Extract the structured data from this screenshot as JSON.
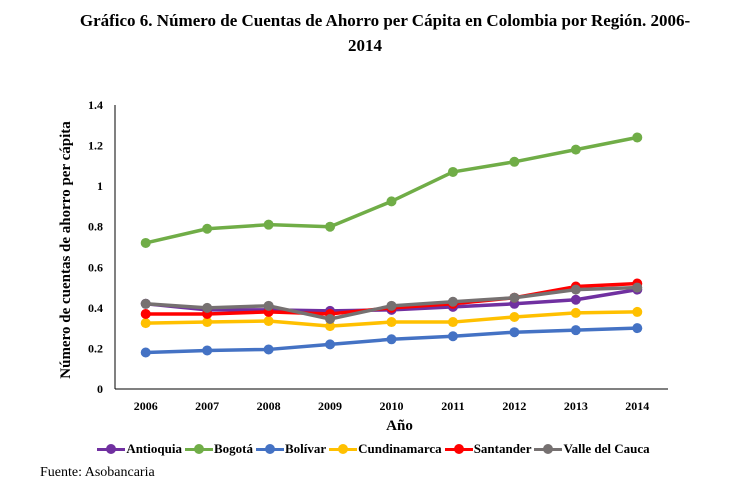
{
  "title_line1": "Gráfico 6. Número de Cuentas de Ahorro per Cápita en Colombia por Región. 2006-",
  "title_line2": "2014",
  "source": "Fuente: Asobancaria",
  "chart_data": {
    "type": "line",
    "title": "Gráfico 6. Número de Cuentas de Ahorro per Cápita en Colombia por Región. 2006-2014",
    "xlabel": "Año",
    "ylabel": "Número de cuentas de ahorro per cápita",
    "ylim": [
      0,
      1.4
    ],
    "yticks": [
      "0",
      "0.2",
      "0.4",
      "0.6",
      "0.8",
      "1",
      "1.2",
      "1.4"
    ],
    "ytick_values": [
      0,
      0.2,
      0.4,
      0.6,
      0.8,
      1,
      1.2,
      1.4
    ],
    "categories": [
      "2006",
      "2007",
      "2008",
      "2009",
      "2010",
      "2011",
      "2012",
      "2013",
      "2014"
    ],
    "grid": false,
    "legend_position": "bottom",
    "series": [
      {
        "name": "Antioquia",
        "color": "#7030A0",
        "values": [
          0.42,
          0.39,
          0.39,
          0.385,
          0.39,
          0.405,
          0.42,
          0.44,
          0.49
        ]
      },
      {
        "name": "Bogotá",
        "color": "#70AD47",
        "values": [
          0.72,
          0.79,
          0.81,
          0.8,
          0.925,
          1.07,
          1.12,
          1.18,
          1.24
        ]
      },
      {
        "name": "Bolívar",
        "color": "#4472C4",
        "values": [
          0.18,
          0.19,
          0.195,
          0.22,
          0.245,
          0.26,
          0.28,
          0.29,
          0.3
        ]
      },
      {
        "name": "Cundinamarca",
        "color": "#FFC000",
        "values": [
          0.325,
          0.33,
          0.335,
          0.31,
          0.33,
          0.33,
          0.355,
          0.375,
          0.38
        ]
      },
      {
        "name": "Santander",
        "color": "#FF0000",
        "values": [
          0.37,
          0.37,
          0.38,
          0.37,
          0.4,
          0.42,
          0.45,
          0.505,
          0.52
        ]
      },
      {
        "name": "Valle del Cauca",
        "color": "#767171",
        "values": [
          0.42,
          0.4,
          0.41,
          0.345,
          0.41,
          0.43,
          0.45,
          0.49,
          0.5
        ]
      }
    ]
  }
}
